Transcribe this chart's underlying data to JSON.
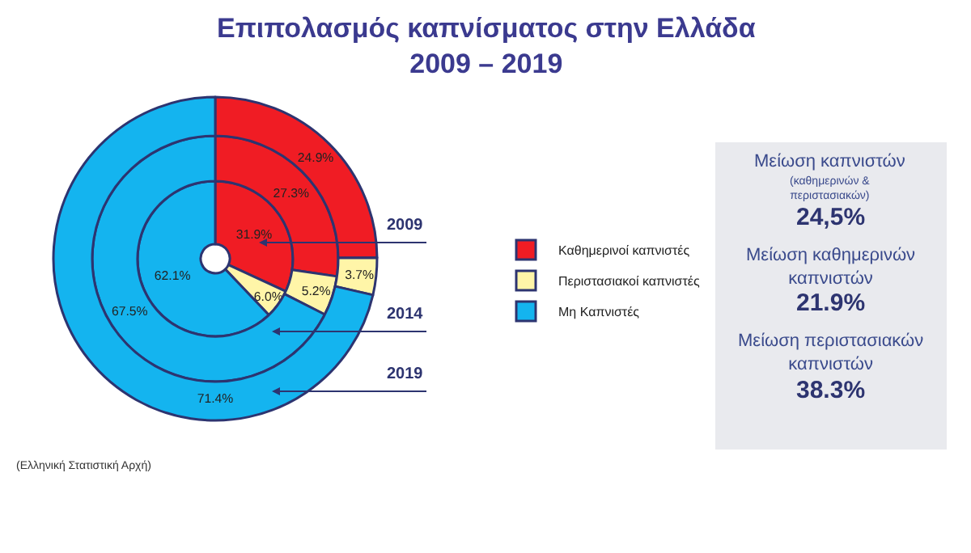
{
  "chart_data": [
    {
      "type": "donut",
      "title": "Επιπολασμός καπνίσματος στην Ελλάδα\n2009 – 2019",
      "categories": [
        "Καθημερινοί καπνιστές",
        "Περιστασιακοί καπνιστές",
        "Μη Καπνιστές"
      ],
      "colors": [
        "#f01c24",
        "#fff5a8",
        "#14b4ef"
      ],
      "series": [
        {
          "name": "2009",
          "values": [
            31.9,
            6.0,
            62.1
          ],
          "value_labels": [
            "31.9%",
            "6.0%",
            "62.1%"
          ]
        },
        {
          "name": "2014",
          "values": [
            27.3,
            5.2,
            67.5
          ],
          "value_labels": [
            "27.3%",
            "5.2%",
            "67.5%"
          ]
        },
        {
          "name": "2019",
          "values": [
            24.9,
            3.7,
            71.4
          ],
          "value_labels": [
            "24.9%",
            "3.7%",
            "71.4%"
          ]
        }
      ],
      "legend": "right",
      "annotations": [
        "(Ελληνική Στατιστική Αρχή)"
      ]
    },
    {
      "type": "other",
      "annotations": [
        "Μείωση καπνιστών",
        "(καθημερινών &\nπεριστασιακών)",
        "24,5%",
        "Μείωση καθημερινών\nκαπνιστών",
        "21.9%",
        "Μείωση περιστασιακών\nκαπνιστών",
        "38.3%"
      ]
    }
  ]
}
